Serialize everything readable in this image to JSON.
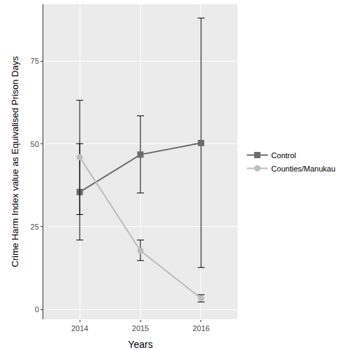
{
  "chart_data": {
    "type": "line",
    "x_label": "Years",
    "y_label": "Crime Harm Index value as Equivalised Prison Days",
    "categories": [
      "2014",
      "2015",
      "2016"
    ],
    "series": [
      {
        "name": "Control",
        "color": "#6b6b6b",
        "marker": "square",
        "values": [
          35.5,
          46.8,
          50.3
        ],
        "lower": [
          21,
          35.2,
          12.7
        ],
        "upper": [
          50.1,
          58.5,
          88
        ]
      },
      {
        "name": "Counties/Manukau",
        "color": "#bdbdbd",
        "marker": "circle",
        "values": [
          46,
          17.8,
          3.4
        ],
        "lower": [
          28.7,
          14.8,
          2.3
        ],
        "upper": [
          63.2,
          21,
          4.5
        ]
      }
    ],
    "ylim": [
      -2.9,
      92.2
    ],
    "yticks": [
      0,
      25,
      50,
      75
    ],
    "grid": true,
    "legend": "right"
  }
}
